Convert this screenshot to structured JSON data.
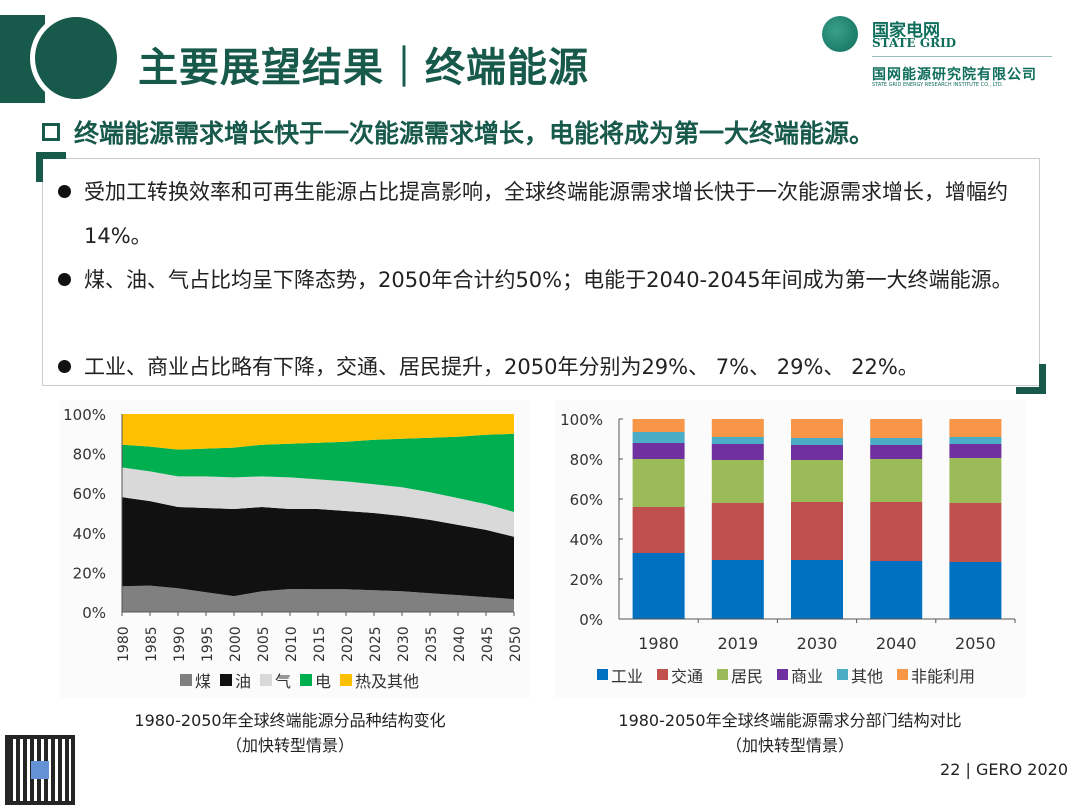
{
  "header": {
    "title": "主要展望结果｜终端能源"
  },
  "logo": {
    "cn": "国家电网",
    "en": "STATE GRID",
    "org_cn": "国网能源研究院有限公司",
    "org_en": "STATE GRID ENERGY RESEARCH INSTITUTE CO., LTD."
  },
  "subheading": "终端能源需求增长快于一次能源需求增长，电能将成为第一大终端能源。",
  "bullets": [
    "受加工转换效率和可再生能源占比提高影响，全球终端能源需求增长快于一次能源需求增长，增幅约14%。",
    "煤、油、气占比均呈下降态势，2050年合计约50%；电能于2040-2045年间成为第一大终端能源。",
    "工业、商业占比略有下降，交通、居民提升，2050年分别为29%、 7%、 29%、 22%。"
  ],
  "chart_data": [
    {
      "type": "area",
      "stacked": true,
      "x": [
        1980,
        1985,
        1990,
        1995,
        2000,
        2005,
        2010,
        2015,
        2020,
        2025,
        2030,
        2035,
        2040,
        2045,
        2050
      ],
      "ylim": [
        0,
        100
      ],
      "yticks": [
        "0%",
        "20%",
        "40%",
        "60%",
        "80%",
        "100%"
      ],
      "legend_position": "bottom",
      "series": [
        {
          "name": "煤",
          "color": "#808080",
          "values": [
            13,
            13.3,
            12,
            10,
            8,
            10.5,
            11.6,
            11.5,
            11.5,
            11,
            10.5,
            9.5,
            8.5,
            7.5,
            6.5
          ]
        },
        {
          "name": "油",
          "color": "#111111",
          "values": [
            45,
            42.7,
            41,
            42.5,
            44,
            42.5,
            40.4,
            40.5,
            39.5,
            39,
            38,
            37,
            35.5,
            34,
            31.5
          ]
        },
        {
          "name": "气",
          "color": "#d9d9d9",
          "values": [
            15,
            15,
            15.5,
            16,
            16,
            15.5,
            16,
            15,
            15,
            14.5,
            14.5,
            14,
            13.5,
            13,
            12.5
          ]
        },
        {
          "name": "电",
          "color": "#00b050",
          "values": [
            11.5,
            12.5,
            13.5,
            14,
            15,
            16,
            17,
            18.5,
            20,
            22.5,
            24.5,
            27.5,
            31,
            35,
            39.5
          ]
        },
        {
          "name": "热及其他",
          "color": "#ffc000",
          "values": [
            15.5,
            16.5,
            18,
            17.5,
            17,
            15.5,
            15,
            14.5,
            14,
            13,
            12.5,
            12,
            11.5,
            10.5,
            10
          ]
        }
      ],
      "caption": [
        "1980-2050年全球终端能源分品种结构变化",
        "（加快转型情景）"
      ]
    },
    {
      "type": "bar",
      "stacked": true,
      "categories": [
        "1980",
        "2019",
        "2030",
        "2040",
        "2050"
      ],
      "ylim": [
        0,
        100
      ],
      "yticks": [
        "0%",
        "20%",
        "40%",
        "60%",
        "80%",
        "100%"
      ],
      "legend_position": "bottom",
      "series": [
        {
          "name": "工业",
          "color": "#0070c0",
          "values": [
            33,
            29.5,
            29.5,
            29,
            28.5
          ]
        },
        {
          "name": "交通",
          "color": "#c0504d",
          "values": [
            23,
            28.5,
            29,
            29.5,
            29.5
          ]
        },
        {
          "name": "居民",
          "color": "#9bbb59",
          "values": [
            24,
            21.5,
            21,
            21.5,
            22.5
          ]
        },
        {
          "name": "商业",
          "color": "#7030a0",
          "values": [
            8,
            8,
            7.5,
            7,
            7
          ]
        },
        {
          "name": "其他",
          "color": "#4bacc6",
          "values": [
            5.5,
            3.5,
            3.5,
            3.5,
            3.5
          ]
        },
        {
          "name": "非能利用",
          "color": "#f79646",
          "values": [
            6.5,
            9,
            9.5,
            9.5,
            9
          ]
        }
      ],
      "caption": [
        "1980-2050年全球终端能源需求分部门结构对比",
        "（加快转型情景）"
      ]
    }
  ],
  "footer": "22 | GERO 2020"
}
